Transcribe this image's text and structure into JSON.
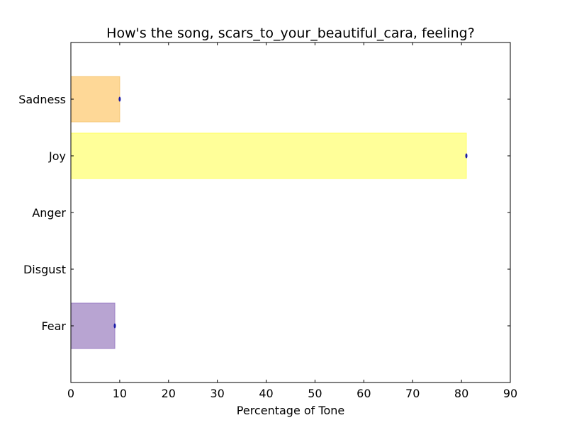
{
  "chart_data": {
    "type": "bar",
    "orientation": "horizontal",
    "title": "How's the song, scars_to_your_beautiful_cara, feeling?",
    "xlabel": "Percentage of Tone",
    "ylabel": "",
    "categories": [
      "Fear",
      "Disgust",
      "Anger",
      "Joy",
      "Sadness"
    ],
    "values": [
      9,
      0,
      0,
      81,
      10
    ],
    "colors": [
      "#b8a4d2",
      "#ffffff",
      "#ffffff",
      "#ffff99",
      "#fed897"
    ],
    "edge_colors": [
      "#9b7fc6",
      "#ffffff",
      "#ffffff",
      "#ffff66",
      "#f5c77a"
    ],
    "xlim": [
      0,
      90
    ],
    "xticks": [
      0,
      10,
      20,
      30,
      40,
      50,
      60,
      70,
      80,
      90
    ],
    "grid": false,
    "legend": "none"
  }
}
